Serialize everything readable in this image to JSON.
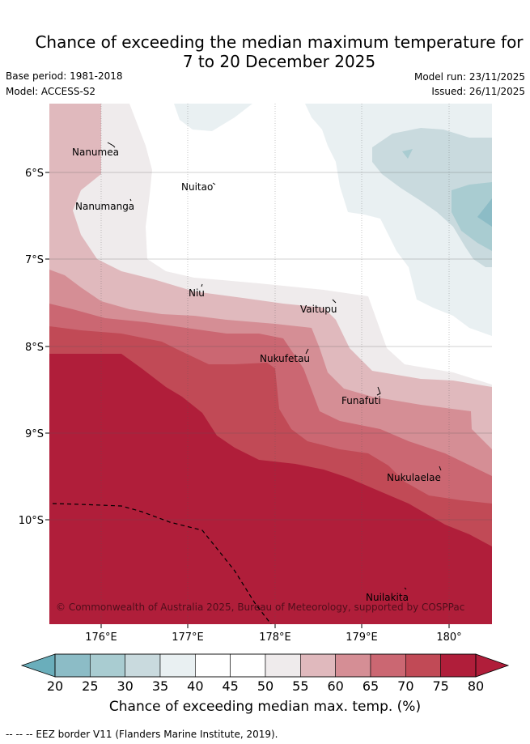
{
  "title": {
    "line1": "Chance of exceeding the median maximum temperature for",
    "line2": "7 to 20 December 2025"
  },
  "meta": {
    "base_period": "Base period: 1981-2018",
    "model": "Model: ACCESS-S2",
    "model_run": "Model run: 23/11/2025",
    "issued": "Issued: 26/11/2025"
  },
  "map": {
    "lon_ticks": [
      "176°E",
      "177°E",
      "178°E",
      "179°E",
      "180°"
    ],
    "lat_ticks": [
      "6°S",
      "7°S",
      "8°S",
      "9°S",
      "10°S"
    ],
    "islands": [
      "Nanumea",
      "Nanumanga",
      "Nuitao",
      "Niu",
      "Vaitupu",
      "Nukufetau",
      "Funafuti",
      "Nukulaelae",
      "Nuilakita"
    ],
    "credit": "© Commonwealth of Australia 2025, Bureau of Meteorology, supported by COSPPac"
  },
  "colorbar": {
    "ticks": [
      "20",
      "25",
      "30",
      "35",
      "40",
      "45",
      "50",
      "55",
      "60",
      "65",
      "70",
      "75",
      "80"
    ],
    "label": "Chance of exceeding median max. temp. (%)",
    "colors": [
      "#6aaebb",
      "#8cbcc6",
      "#a9ccd1",
      "#c9dade",
      "#e9f0f2",
      "#ffffff",
      "#ffffff",
      "#efebec",
      "#e0b9bd",
      "#d58e95",
      "#cb6772",
      "#c14a56",
      "#b01e3a"
    ]
  },
  "footer": "-- -- -- EEZ border V11 (Flanders Marine Institute, 2019)."
}
